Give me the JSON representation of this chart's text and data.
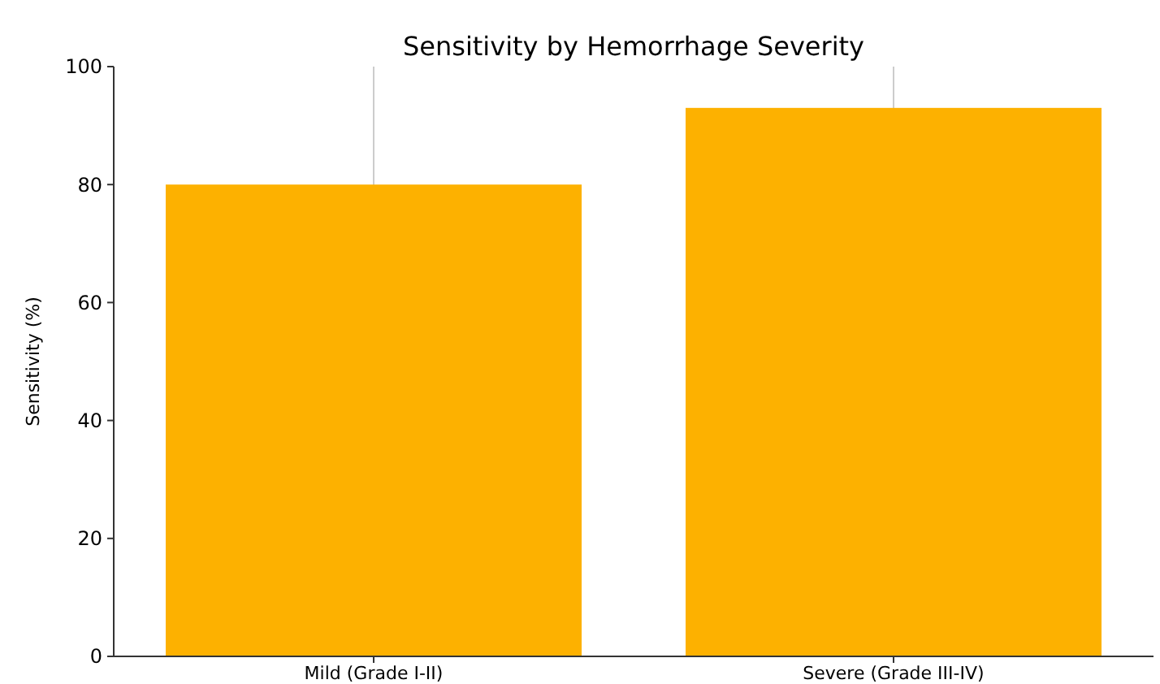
{
  "chart_data": {
    "type": "bar",
    "title": "Sensitivity by Hemorrhage Severity",
    "ylabel": "Sensitivity (%)",
    "categories": [
      "Mild (Grade I-II)",
      "Severe (Grade III-IV)"
    ],
    "values": [
      80,
      93
    ],
    "color": "#fdb100",
    "ylim": [
      0,
      100
    ],
    "yticks": [
      0,
      20,
      40,
      60,
      80,
      100
    ],
    "grid": "x"
  }
}
